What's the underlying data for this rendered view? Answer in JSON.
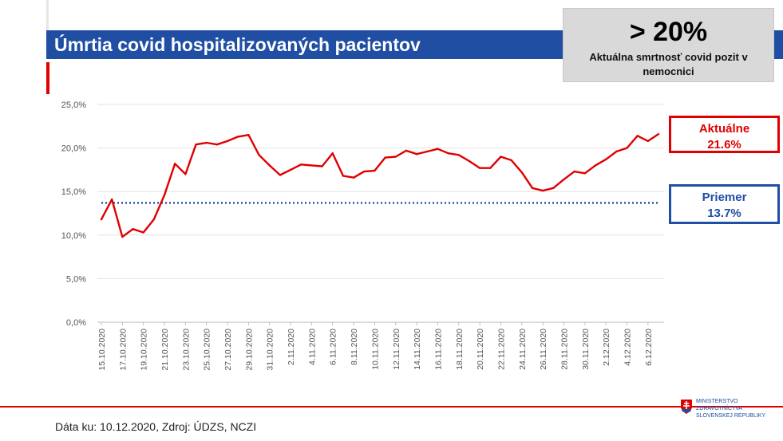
{
  "title": "Úmrtia covid hospitalizovaných pacientov",
  "callout": {
    "big": "> 20%",
    "small": "Aktuálna smrtnosť covid pozit v nemocnici"
  },
  "current_box": {
    "label": "Aktuálne",
    "value": "21.6%"
  },
  "average_box": {
    "label": "Priemer",
    "value": "13.7%"
  },
  "footer": {
    "text": "Dáta ku: 10.12.2020, Zdroj: ÚDZS, NCZI"
  },
  "logo": {
    "text": "MINISTERSTVO\nZDRAVOTNÍCTVA\nSLOVENSKEJ REPUBLIKY",
    "icon": "slovak-coat-of-arms-icon"
  },
  "colors": {
    "title_bar": "#1f4ea3",
    "series": "#e00000",
    "average": "#1f4ea3",
    "grid": "#e3e3e3"
  },
  "chart_data": {
    "type": "line",
    "title": "",
    "xlabel": "",
    "ylabel": "",
    "ylim": [
      0,
      25
    ],
    "y_ticks": [
      "0,0%",
      "5,0%",
      "10,0%",
      "15,0%",
      "20,0%",
      "25,0%"
    ],
    "grid": true,
    "x_tick_labels": [
      "15.10.2020",
      "17.10.2020",
      "19.10.2020",
      "21.10.2020",
      "23.10.2020",
      "25.10.2020",
      "27.10.2020",
      "29.10.2020",
      "31.10.2020",
      "2.11.2020",
      "4.11.2020",
      "6.11.2020",
      "8.11.2020",
      "10.11.2020",
      "12.11.2020",
      "14.11.2020",
      "16.11.2020",
      "18.11.2020",
      "20.11.2020",
      "22.11.2020",
      "24.11.2020",
      "26.11.2020",
      "28.11.2020",
      "30.11.2020",
      "2.12.2020",
      "4.12.2020",
      "6.12.2020"
    ],
    "series": [
      {
        "values": [
          11.8,
          14.1,
          9.8,
          10.7,
          10.3,
          11.8,
          14.6,
          18.2,
          17.0,
          20.4,
          20.6,
          20.4,
          20.8,
          21.3,
          21.5,
          19.2,
          18.0,
          16.9,
          17.5,
          18.1,
          18.0,
          17.9,
          19.4,
          16.8,
          16.6,
          17.3,
          17.4,
          18.9,
          19.0,
          19.7,
          19.3,
          19.6,
          19.9,
          19.4,
          19.2,
          18.5,
          17.7,
          17.7,
          19.0,
          18.6,
          17.2,
          15.4,
          15.1,
          15.4,
          16.4,
          17.3,
          17.1,
          18.0,
          18.7,
          19.6,
          20.0,
          21.4,
          20.8,
          21.6
        ]
      }
    ],
    "average_line": 13.7
  }
}
